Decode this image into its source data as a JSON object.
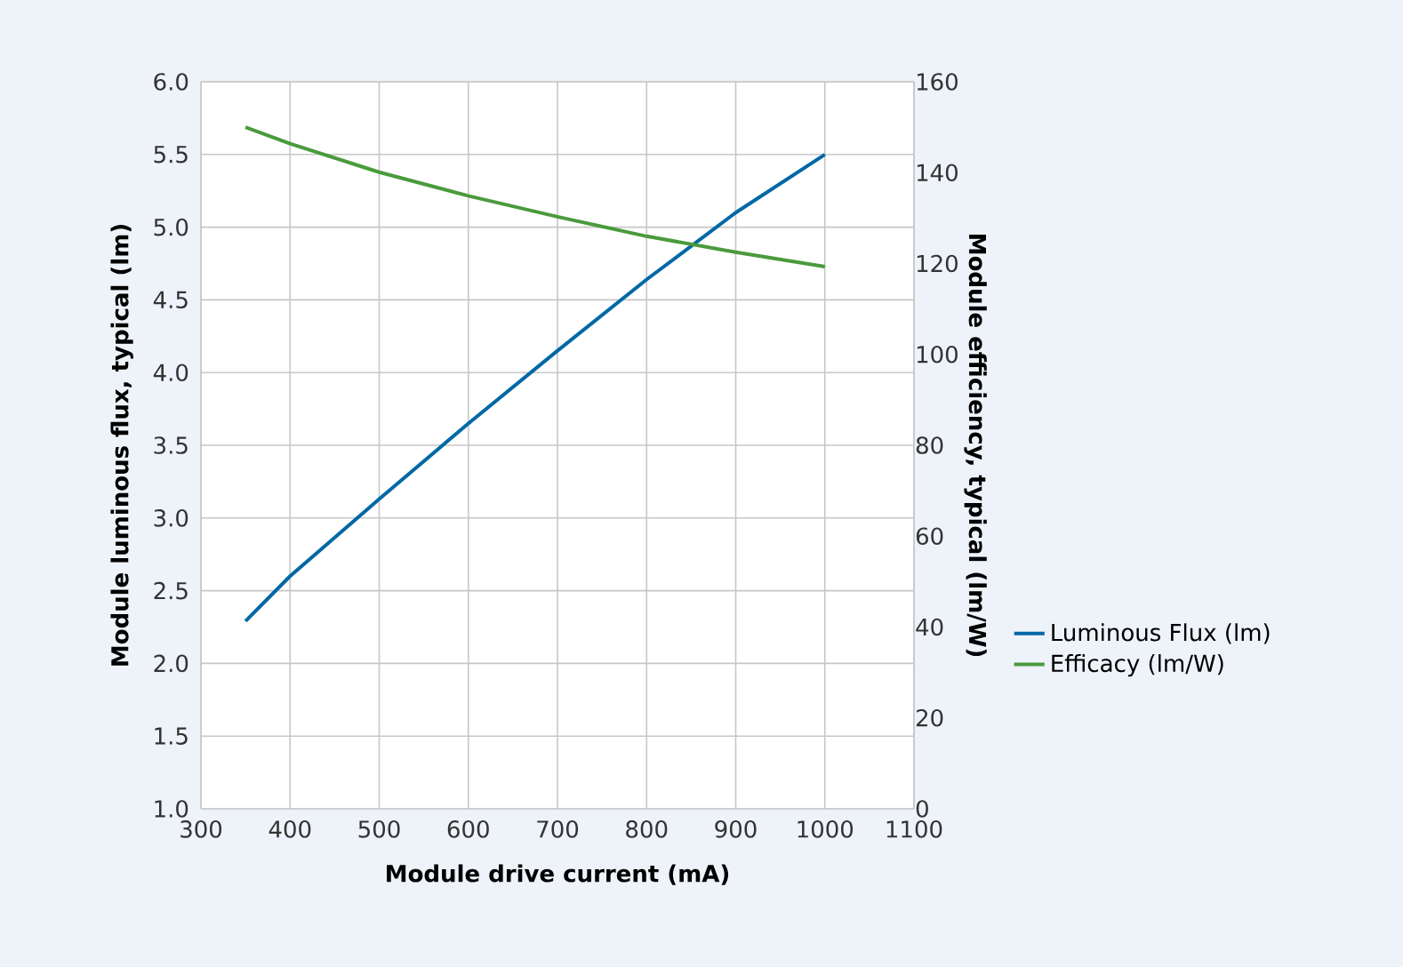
{
  "chart_data": {
    "type": "line",
    "xlabel": "Module drive current (mA)",
    "ylabel": "Module luminous flux, typical (lm)",
    "y2label": "Module efficiency, typical (lm/W)",
    "x": [
      350,
      400,
      500,
      600,
      700,
      800,
      900,
      1000
    ],
    "series": [
      {
        "name": "Luminous Flux (lm)",
        "color": "#0068a5",
        "values": [
          2.29,
          2.6,
          3.13,
          3.65,
          4.15,
          4.64,
          5.1,
          5.5
        ]
      },
      {
        "name": "Efficacy (lm/W)",
        "color": "#4a9a3c",
        "axis": "y2",
        "values": [
          150,
          146.4,
          140.1,
          134.9,
          130.3,
          126,
          122.5,
          119.3
        ]
      }
    ],
    "xlim": [
      300,
      1100
    ],
    "xticks": [
      300,
      400,
      500,
      600,
      700,
      800,
      900,
      1000,
      1100
    ],
    "ylim": [
      1.0,
      6.0
    ],
    "yticks": [
      {
        "value": 1.0,
        "label": "1.0"
      },
      1.5,
      {
        "value": 2.0,
        "label": "2.0"
      },
      2.5,
      {
        "value": 3.0,
        "label": "3.0"
      },
      3.5,
      {
        "value": 4.0,
        "label": "4.0"
      },
      4.5,
      {
        "value": 5.0,
        "label": "5.0"
      },
      5.5,
      {
        "value": 6.0,
        "label": "6.0"
      }
    ],
    "y2lim": [
      0,
      160
    ],
    "y2ticks": [
      0,
      20,
      40,
      60,
      80,
      100,
      120,
      140,
      160
    ],
    "grid": true,
    "legend": "right",
    "marker": "none",
    "line_style": "solid"
  }
}
